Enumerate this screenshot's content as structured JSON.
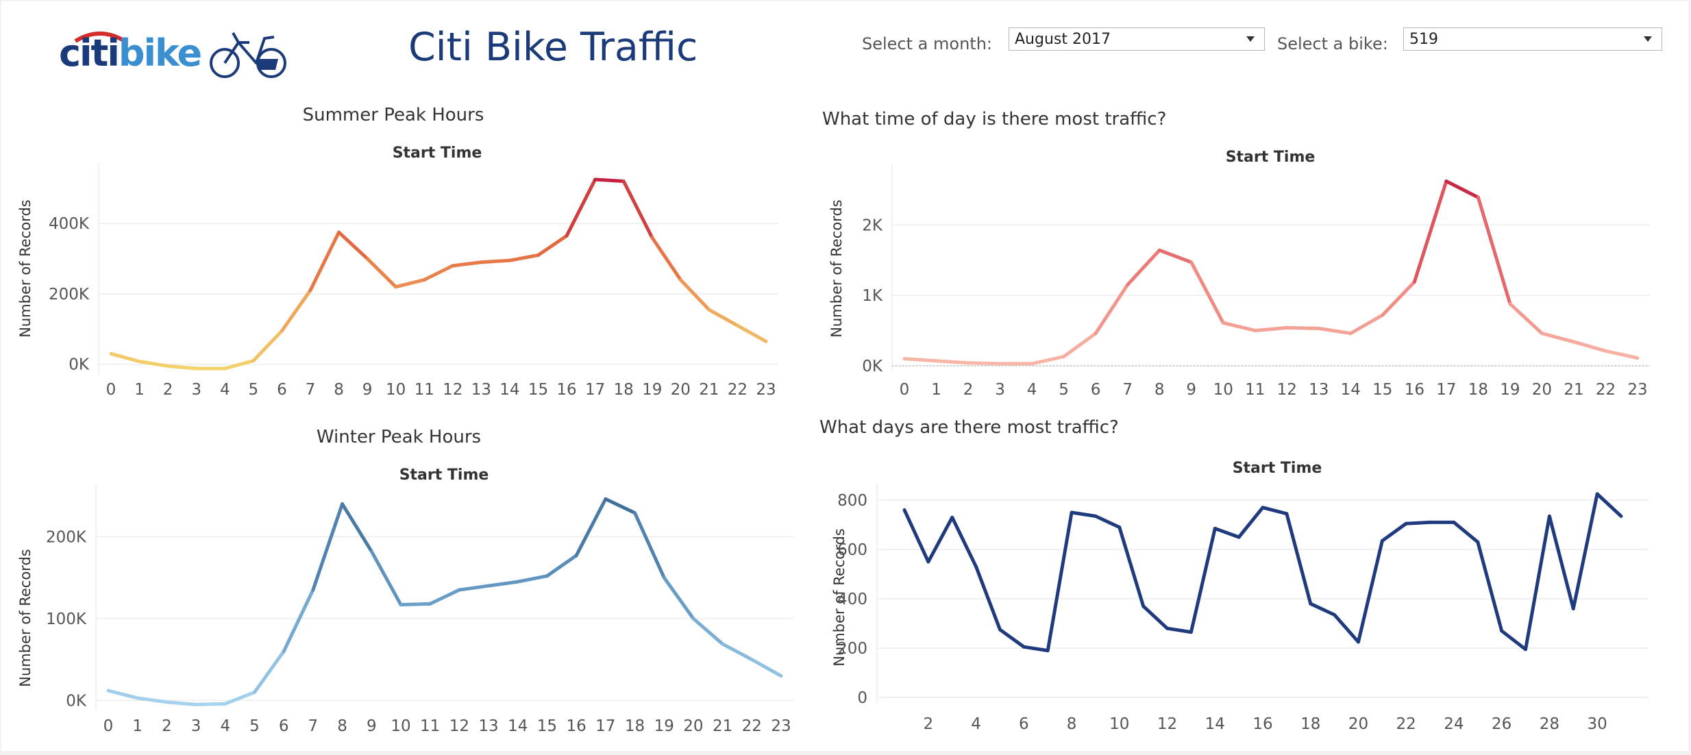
{
  "header": {
    "logo_citi": "citi",
    "logo_bike": "bike",
    "title": "Citi Bike Traffic"
  },
  "filters": {
    "month_label": "Select a month:",
    "month_value": "August 2017",
    "bike_label": "Select a bike:",
    "bike_value": "519"
  },
  "colors": {
    "brand_blue": "#1b3a7a",
    "logo_light_blue": "#3a8fd0",
    "days_line": "#1f3a7d"
  },
  "chart_data": [
    {
      "id": "summer",
      "type": "line",
      "title": "Summer Peak Hours",
      "subtitle": "Start Time",
      "ylabel": "Number of Records",
      "x": [
        0,
        1,
        2,
        3,
        4,
        5,
        6,
        7,
        8,
        9,
        10,
        11,
        12,
        13,
        14,
        15,
        16,
        17,
        18,
        19,
        20,
        21,
        22,
        23
      ],
      "values": [
        30000,
        8000,
        -5000,
        -12000,
        -12000,
        10000,
        95000,
        210000,
        375000,
        300000,
        220000,
        240000,
        280000,
        290000,
        295000,
        310000,
        365000,
        525000,
        520000,
        360000,
        240000,
        155000,
        110000,
        65000
      ],
      "ylim": [
        -20000,
        560000
      ],
      "yticks": [
        0,
        200000,
        400000
      ],
      "ytick_labels": [
        "0K",
        "200K",
        "400K"
      ],
      "color_scale": "sequential orange-red",
      "grid": true
    },
    {
      "id": "winter",
      "type": "line",
      "title": "Winter Peak Hours",
      "subtitle": "Start Time",
      "ylabel": "Number of Records",
      "x": [
        0,
        1,
        2,
        3,
        4,
        5,
        6,
        7,
        8,
        9,
        10,
        11,
        12,
        13,
        14,
        15,
        16,
        17,
        18,
        19,
        20,
        21,
        22,
        23
      ],
      "values": [
        12000,
        3000,
        -2000,
        -5000,
        -4000,
        10000,
        60000,
        135000,
        240000,
        182000,
        117000,
        118000,
        135000,
        140000,
        145000,
        152000,
        177000,
        246000,
        229000,
        150000,
        100000,
        69000,
        50000,
        30000
      ],
      "ylim": [
        -8000,
        258000
      ],
      "yticks": [
        0,
        100000,
        200000
      ],
      "ytick_labels": [
        "0K",
        "100K",
        "200K"
      ],
      "color_scale": "sequential blue",
      "grid": true
    },
    {
      "id": "time_of_day",
      "type": "line",
      "title": "What time of day is there most traffic?",
      "subtitle": "Start Time",
      "ylabel": "Number of Records",
      "x": [
        0,
        1,
        2,
        3,
        4,
        5,
        6,
        7,
        8,
        9,
        10,
        11,
        12,
        13,
        14,
        15,
        16,
        17,
        18,
        19,
        20,
        21,
        22,
        23
      ],
      "values": [
        100,
        70,
        40,
        30,
        30,
        130,
        460,
        1150,
        1640,
        1470,
        610,
        500,
        540,
        530,
        460,
        720,
        1190,
        2620,
        2390,
        880,
        460,
        340,
        210,
        110
      ],
      "ylim": [
        -40,
        2800
      ],
      "yticks": [
        0,
        1000,
        2000
      ],
      "ytick_labels": [
        "0K",
        "1K",
        "2K"
      ],
      "color_scale": "sequential pink-red",
      "grid": true
    },
    {
      "id": "days",
      "type": "line",
      "title": "What days are there most traffic?",
      "subtitle": "Start Time",
      "ylabel": "Number of Records",
      "x": [
        1,
        2,
        3,
        4,
        5,
        6,
        7,
        8,
        9,
        10,
        11,
        12,
        13,
        14,
        15,
        16,
        17,
        18,
        19,
        20,
        21,
        22,
        23,
        24,
        25,
        26,
        27,
        28,
        29,
        30,
        31
      ],
      "values": [
        760,
        550,
        730,
        530,
        275,
        205,
        190,
        750,
        735,
        690,
        370,
        280,
        265,
        685,
        650,
        770,
        745,
        380,
        335,
        225,
        635,
        705,
        710,
        710,
        630,
        270,
        195,
        735,
        360,
        825,
        735
      ],
      "xticks": [
        2,
        4,
        6,
        8,
        10,
        12,
        14,
        16,
        18,
        20,
        22,
        24,
        26,
        28,
        30
      ],
      "ylim": [
        0,
        850
      ],
      "yticks": [
        0,
        200,
        400,
        600,
        800
      ],
      "ytick_labels": [
        "0",
        "200",
        "400",
        "600",
        "800"
      ],
      "color": "#1f3a7d",
      "grid": true
    }
  ]
}
